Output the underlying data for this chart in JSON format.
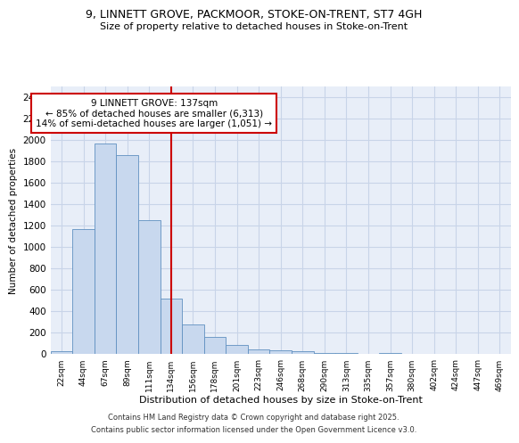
{
  "title1": "9, LINNETT GROVE, PACKMOOR, STOKE-ON-TRENT, ST7 4GH",
  "title2": "Size of property relative to detached houses in Stoke-on-Trent",
  "xlabel": "Distribution of detached houses by size in Stoke-on-Trent",
  "ylabel": "Number of detached properties",
  "categories": [
    "22sqm",
    "44sqm",
    "67sqm",
    "89sqm",
    "111sqm",
    "134sqm",
    "156sqm",
    "178sqm",
    "201sqm",
    "223sqm",
    "246sqm",
    "268sqm",
    "290sqm",
    "313sqm",
    "335sqm",
    "357sqm",
    "380sqm",
    "402sqm",
    "424sqm",
    "447sqm",
    "469sqm"
  ],
  "values": [
    25,
    1170,
    1970,
    1860,
    1250,
    520,
    275,
    155,
    85,
    45,
    35,
    25,
    12,
    8,
    0,
    5,
    2,
    2,
    0,
    2,
    0
  ],
  "bar_color": "#c8d8ee",
  "bar_edgecolor": "#6090c0",
  "vline_x": 5,
  "vline_color": "#cc0000",
  "annotation_text": "9 LINNETT GROVE: 137sqm\n← 85% of detached houses are smaller (6,313)\n14% of semi-detached houses are larger (1,051) →",
  "annotation_box_color": "#cc0000",
  "annotation_bg": "white",
  "ylim": [
    0,
    2500
  ],
  "yticks": [
    0,
    200,
    400,
    600,
    800,
    1000,
    1200,
    1400,
    1600,
    1800,
    2000,
    2200,
    2400
  ],
  "grid_color": "#c8d4e8",
  "bg_color": "#e8eef8",
  "footer1": "Contains HM Land Registry data © Crown copyright and database right 2025.",
  "footer2": "Contains public sector information licensed under the Open Government Licence v3.0."
}
